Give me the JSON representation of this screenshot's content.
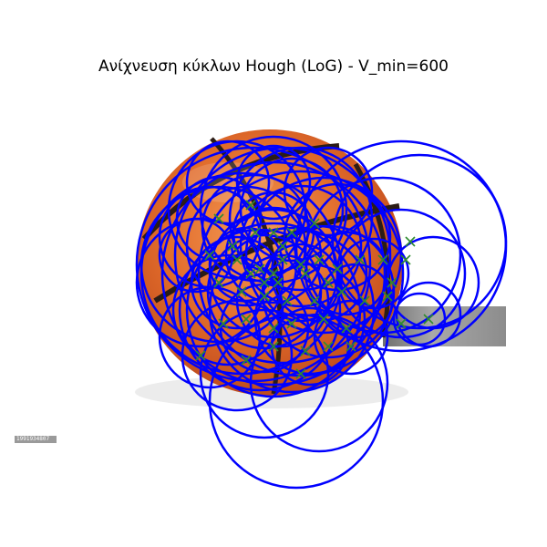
{
  "figure": {
    "title": "Ανίχνευση κύκλων Hough (LoG) - V_min=600",
    "stock_id": "1991934807"
  },
  "colors": {
    "circle": "#0000ff",
    "marker": "#2e8b2e",
    "ball": "#e06a2a",
    "ball_dark": "#b8451a",
    "seam": "#2b1c16",
    "banner": "#9f9f9f",
    "shadow": "#e9e9e9"
  },
  "icons": {
    "marker": "x-marker-icon",
    "ball": "basketball-image"
  }
}
